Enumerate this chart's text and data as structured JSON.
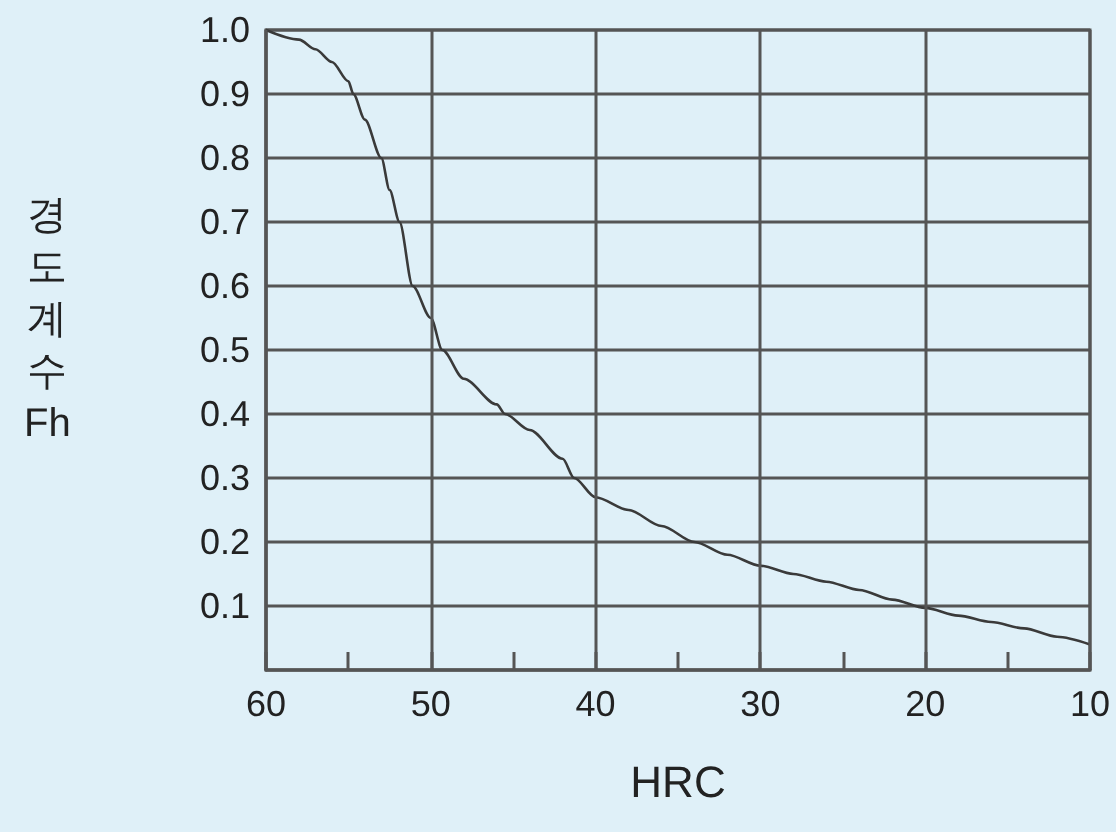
{
  "chart_data": {
    "type": "line",
    "xlabel": "HRC",
    "ylabel": "경도계수 Fh",
    "x": [
      60,
      58,
      57,
      56,
      55,
      54.7,
      54,
      53,
      52.5,
      51.9,
      51.1,
      50,
      49.3,
      48,
      46,
      45.5,
      44,
      42,
      41.3,
      40,
      38,
      36,
      34,
      32,
      30,
      28,
      26,
      24,
      22,
      20,
      18,
      16,
      14,
      12,
      10
    ],
    "series": [
      {
        "color": "#3a3a3a",
        "values": [
          1.0,
          0.985,
          0.97,
          0.95,
          0.92,
          0.9,
          0.86,
          0.8,
          0.75,
          0.7,
          0.6,
          0.55,
          0.5,
          0.455,
          0.415,
          0.4,
          0.375,
          0.33,
          0.3,
          0.27,
          0.25,
          0.225,
          0.2,
          0.18,
          0.163,
          0.15,
          0.138,
          0.125,
          0.11,
          0.097,
          0.085,
          0.075,
          0.065,
          0.052,
          0.04
        ]
      }
    ],
    "xlim": [
      60,
      10
    ],
    "xticks": [
      60,
      {
        "value": 55,
        "label": null
      },
      50,
      {
        "value": 45,
        "label": null
      },
      40,
      {
        "value": 35,
        "label": null
      },
      30,
      {
        "value": 25,
        "label": null
      },
      20,
      {
        "value": 15,
        "label": null
      },
      10
    ],
    "ylim": [
      0,
      1
    ],
    "yticks": [
      {
        "value": 0,
        "label": null
      },
      0.1,
      0.2,
      0.3,
      0.4,
      0.5,
      0.6,
      0.7,
      0.8,
      0.9,
      {
        "value": 1,
        "label": "1.0"
      }
    ],
    "grid": true,
    "marker": "none",
    "line_style": "solid"
  }
}
